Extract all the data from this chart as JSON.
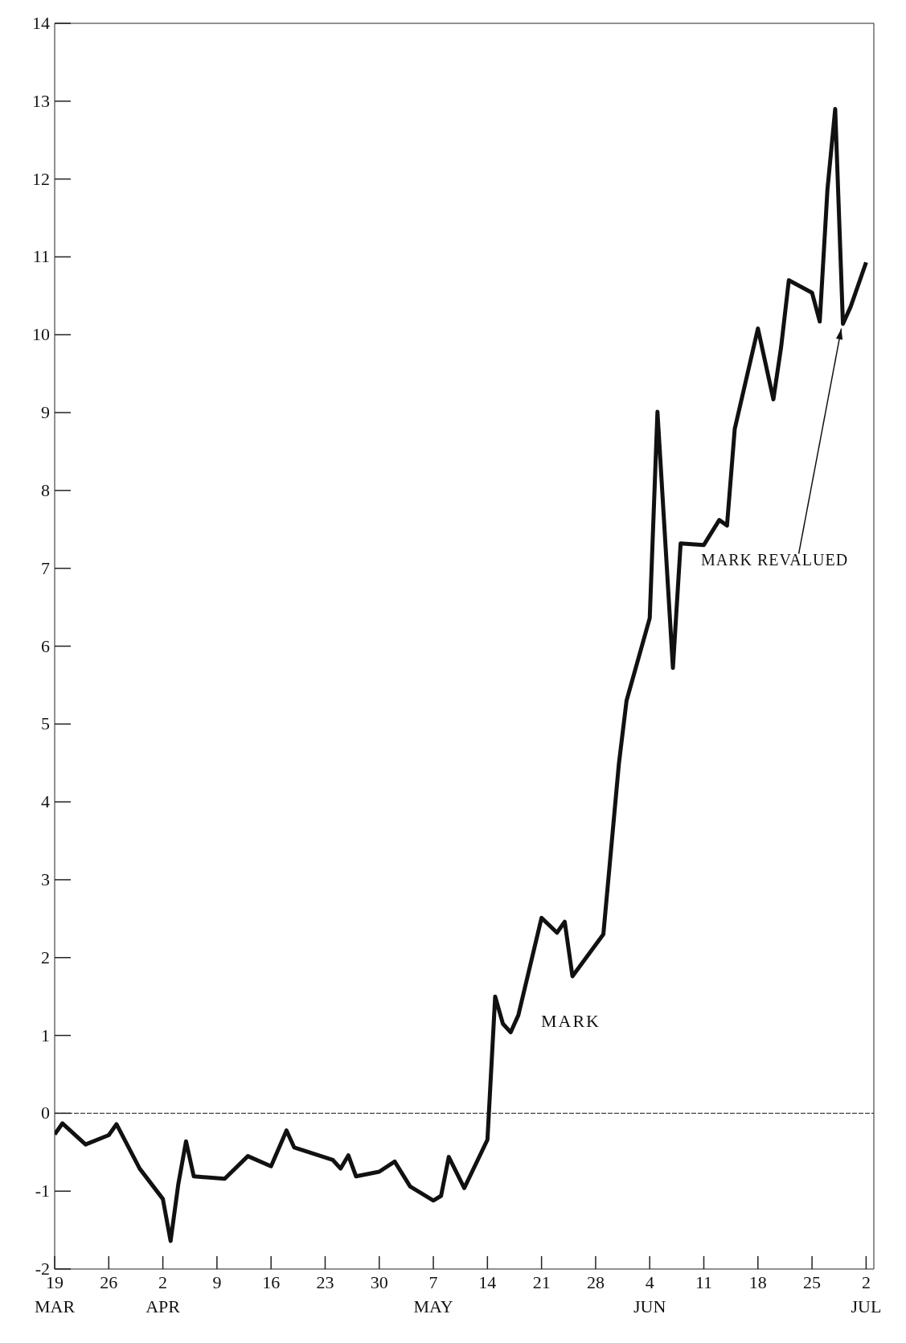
{
  "chart_data": {
    "type": "line",
    "x": [
      "--03-19",
      "--03-20",
      "--03-23",
      "--03-26",
      "--03-27",
      "--03-30",
      "--04-02",
      "--04-03",
      "--04-04",
      "--04-05",
      "--04-06",
      "--04-10",
      "--04-13",
      "--04-16",
      "--04-18",
      "--04-19",
      "--04-24",
      "--04-25",
      "--04-26",
      "--04-27",
      "--04-30",
      "--05-02",
      "--05-04",
      "--05-07",
      "--05-08",
      "--05-09",
      "--05-11",
      "--05-14",
      "--05-15",
      "--05-16",
      "--05-17",
      "--05-18",
      "--05-21",
      "--05-23",
      "--05-24",
      "--05-25",
      "--05-29",
      "--05-31",
      "--06-01",
      "--06-04",
      "--06-05",
      "--06-07",
      "--06-08",
      "--06-11",
      "--06-13",
      "--06-14",
      "--06-15",
      "--06-18",
      "--06-20",
      "--06-21",
      "--06-22",
      "--06-25",
      "--06-26",
      "--06-27",
      "--06-28",
      "--06-29",
      "--06-30",
      "--07-02"
    ],
    "series": [
      {
        "name": "MARK",
        "color": "#111111",
        "values": [
          -0.27,
          -0.13,
          -0.4,
          -0.28,
          -0.14,
          -0.71,
          -1.1,
          -1.64,
          -0.91,
          -0.36,
          -0.81,
          -0.84,
          -0.55,
          -0.68,
          -0.22,
          -0.44,
          -0.6,
          -0.71,
          -0.54,
          -0.81,
          -0.75,
          -0.62,
          -0.94,
          -1.12,
          -1.06,
          -0.56,
          -0.96,
          -0.34,
          1.5,
          1.15,
          1.04,
          1.26,
          2.51,
          2.32,
          2.46,
          1.76,
          2.3,
          4.48,
          5.3,
          6.36,
          9.01,
          5.72,
          7.32,
          7.3,
          7.62,
          7.55,
          8.79,
          10.08,
          9.17,
          9.84,
          10.7,
          10.54,
          10.17,
          11.87,
          12.9,
          10.14,
          10.36,
          10.93
        ]
      }
    ],
    "xlim": [
      "--03-19",
      "--07-03"
    ],
    "xticks": [
      {
        "value": "--03-19",
        "label": "19\nMAR"
      },
      {
        "value": "--03-26",
        "label": "26"
      },
      {
        "value": "--04-02",
        "label": "2\nAPR"
      },
      {
        "value": "--04-09",
        "label": "9"
      },
      {
        "value": "--04-16",
        "label": "16"
      },
      {
        "value": "--04-23",
        "label": "23"
      },
      {
        "value": "--04-30",
        "label": "30"
      },
      {
        "value": "--05-07",
        "label": "7\nMAY"
      },
      {
        "value": "--05-14",
        "label": "14"
      },
      {
        "value": "--05-21",
        "label": "21"
      },
      {
        "value": "--05-28",
        "label": "28"
      },
      {
        "value": "--06-04",
        "label": "4\nJUN"
      },
      {
        "value": "--06-11",
        "label": "11"
      },
      {
        "value": "--06-18",
        "label": "18"
      },
      {
        "value": "--06-25",
        "label": "25"
      },
      {
        "value": "--07-02",
        "label": "2\nJUL"
      }
    ],
    "ylim": [
      -2,
      14
    ],
    "yticks": [
      -2,
      -1,
      0,
      1,
      2,
      3,
      4,
      5,
      6,
      7,
      8,
      9,
      10,
      11,
      12,
      13,
      14
    ],
    "ref_lines": [
      {
        "axis": "y",
        "value": 0
      }
    ],
    "annotations": [
      {
        "text": "MARK REVALUED",
        "x": "--06-29",
        "y": 10.14
      }
    ],
    "line_style": "solid"
  }
}
